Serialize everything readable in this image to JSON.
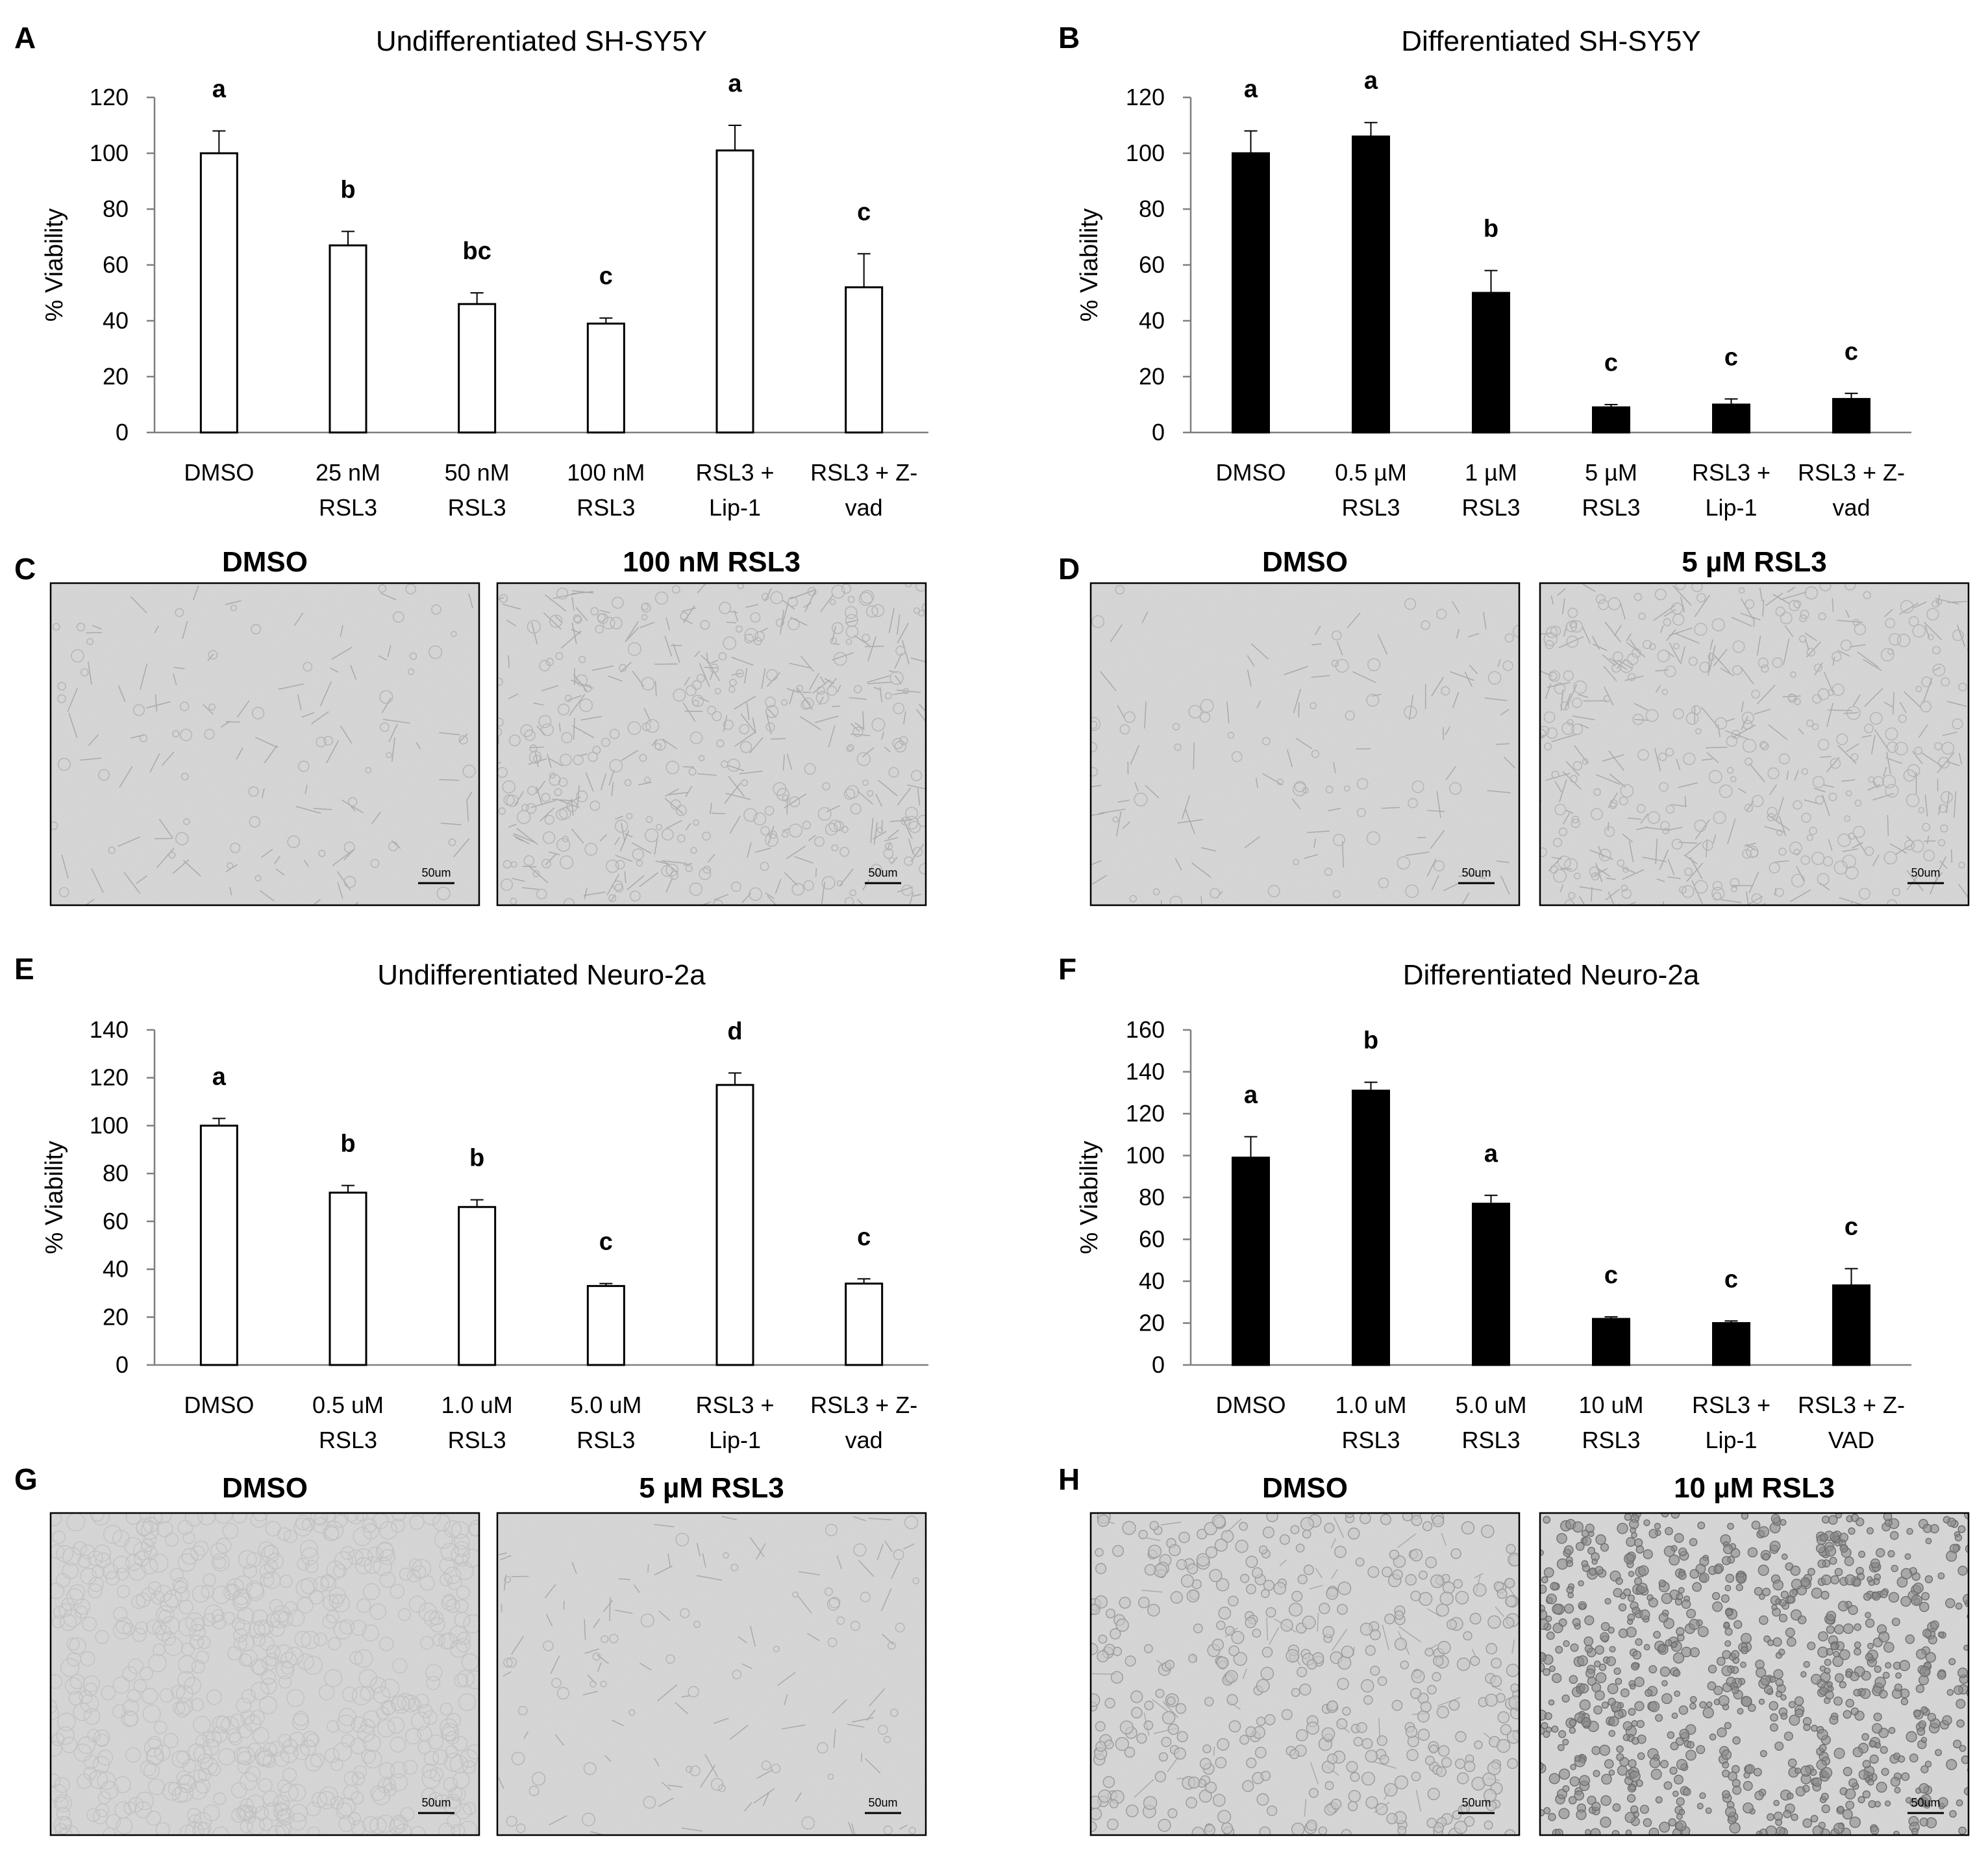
{
  "figure": {
    "panels": [
      "A",
      "B",
      "C",
      "D",
      "E",
      "F",
      "G",
      "H"
    ]
  },
  "chart_data": [
    {
      "panel": "A",
      "type": "bar",
      "title": "Undifferentiated SH-SY5Y",
      "ylabel": "% Viability",
      "ylim": [
        0,
        120
      ],
      "yticks": [
        0,
        20,
        40,
        60,
        80,
        100,
        120
      ],
      "bar_color": "#ffffff",
      "categories": [
        [
          "DMSO"
        ],
        [
          "25 nM",
          "RSL3"
        ],
        [
          "50 nM",
          "RSL3"
        ],
        [
          "100 nM",
          "RSL3"
        ],
        [
          "RSL3 +",
          "Lip-1"
        ],
        [
          "RSL3 + Z-",
          "vad"
        ]
      ],
      "values": [
        100,
        67,
        46,
        39,
        101,
        52
      ],
      "errors": [
        8,
        5,
        4,
        2,
        9,
        12
      ],
      "significance": [
        "a",
        "b",
        "bc",
        "c",
        "a",
        "c"
      ]
    },
    {
      "panel": "B",
      "type": "bar",
      "title": "Differentiated SH-SY5Y",
      "ylabel": "% Viability",
      "ylim": [
        0,
        120
      ],
      "yticks": [
        0,
        20,
        40,
        60,
        80,
        100,
        120
      ],
      "bar_color": "#000000",
      "categories": [
        [
          "DMSO"
        ],
        [
          "0.5 µM",
          "RSL3"
        ],
        [
          "1 µM",
          "RSL3"
        ],
        [
          "5 µM",
          "RSL3"
        ],
        [
          "RSL3 +",
          "Lip-1"
        ],
        [
          "RSL3 + Z-",
          "vad"
        ]
      ],
      "values": [
        100,
        106,
        50,
        9,
        10,
        12
      ],
      "errors": [
        8,
        5,
        8,
        1,
        2,
        2
      ],
      "significance": [
        "a",
        "a",
        "b",
        "c",
        "c",
        "c"
      ]
    },
    {
      "panel": "E",
      "type": "bar",
      "title": "Undifferentiated Neuro-2a",
      "ylabel": "% Viability",
      "ylim": [
        0,
        140
      ],
      "yticks": [
        0,
        20,
        40,
        60,
        80,
        100,
        120,
        140
      ],
      "bar_color": "#ffffff",
      "categories": [
        [
          "DMSO"
        ],
        [
          "0.5 uM",
          "RSL3"
        ],
        [
          "1.0 uM",
          "RSL3"
        ],
        [
          "5.0 uM",
          "RSL3"
        ],
        [
          "RSL3 +",
          "Lip-1"
        ],
        [
          "RSL3 + Z-",
          "vad"
        ]
      ],
      "values": [
        100,
        72,
        66,
        33,
        117,
        34
      ],
      "errors": [
        3,
        3,
        3,
        1,
        5,
        2
      ],
      "significance": [
        "a",
        "b",
        "b",
        "c",
        "d",
        "c"
      ]
    },
    {
      "panel": "F",
      "type": "bar",
      "title": "Differentiated Neuro-2a",
      "ylabel": "% Viability",
      "ylim": [
        0,
        160
      ],
      "yticks": [
        0,
        20,
        40,
        60,
        80,
        100,
        120,
        140,
        160
      ],
      "bar_color": "#000000",
      "categories": [
        [
          "DMSO"
        ],
        [
          "1.0 uM",
          "RSL3"
        ],
        [
          "5.0 uM",
          "RSL3"
        ],
        [
          "10 uM",
          "RSL3"
        ],
        [
          "RSL3 +",
          "Lip-1"
        ],
        [
          "RSL3 + Z-",
          "VAD"
        ]
      ],
      "values": [
        99,
        131,
        77,
        22,
        20,
        38
      ],
      "errors": [
        10,
        4,
        4,
        1,
        1,
        8
      ],
      "significance": [
        "a",
        "b",
        "a",
        "c",
        "c",
        "c"
      ]
    }
  ],
  "micrographs": [
    {
      "panel": "C",
      "left_title": "DMSO",
      "right_title": "100 nM RSL3",
      "left_scale": "50um",
      "right_scale": "50um",
      "texture": [
        "sparse",
        "dense"
      ]
    },
    {
      "panel": "D",
      "left_title": "DMSO",
      "right_title": "5 µM RSL3",
      "left_scale": "50um",
      "right_scale": "50um",
      "texture": [
        "sparse",
        "dense"
      ]
    },
    {
      "panel": "G",
      "left_title": "DMSO",
      "right_title": "5 µM RSL3",
      "left_scale": "50um",
      "right_scale": "50um",
      "texture": [
        "confluent",
        "sparse"
      ]
    },
    {
      "panel": "H",
      "left_title": "DMSO",
      "right_title": "10 µM RSL3",
      "left_scale": "50um",
      "right_scale": "50um",
      "texture": [
        "medium",
        "clumps"
      ]
    }
  ]
}
